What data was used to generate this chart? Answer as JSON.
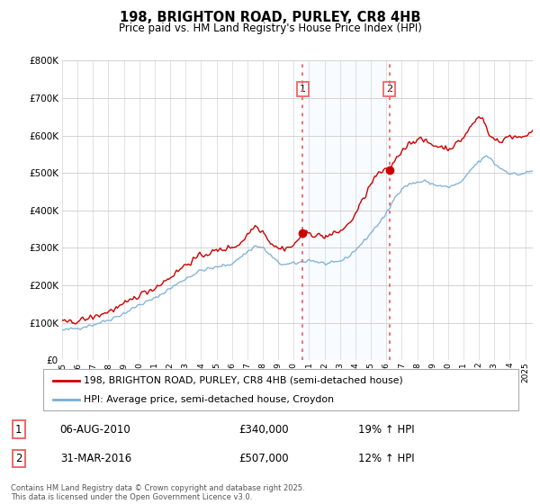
{
  "title": "198, BRIGHTON ROAD, PURLEY, CR8 4HB",
  "subtitle": "Price paid vs. HM Land Registry's House Price Index (HPI)",
  "background_color": "#ffffff",
  "grid_color": "#cccccc",
  "red_line_color": "#cc0000",
  "blue_line_color": "#7aadd4",
  "blue_fill_color": "#ddeeff",
  "vline_color": "#ee6666",
  "sale1_x_year": 2010.58,
  "sale1_y": 340000,
  "sale2_x_year": 2016.21,
  "sale2_y": 507000,
  "sale1_date": "06-AUG-2010",
  "sale1_price": "£340,000",
  "sale1_hpi": "19% ↑ HPI",
  "sale2_date": "31-MAR-2016",
  "sale2_price": "£507,000",
  "sale2_hpi": "12% ↑ HPI",
  "legend_label_red": "198, BRIGHTON ROAD, PURLEY, CR8 4HB (semi-detached house)",
  "legend_label_blue": "HPI: Average price, semi-detached house, Croydon",
  "footer": "Contains HM Land Registry data © Crown copyright and database right 2025.\nThis data is licensed under the Open Government Licence v3.0.",
  "ylim": [
    0,
    800000
  ],
  "yticks": [
    0,
    100000,
    200000,
    300000,
    400000,
    500000,
    600000,
    700000,
    800000
  ],
  "xmin": 1995.0,
  "xmax": 2025.5,
  "xticks": [
    1995,
    1996,
    1997,
    1998,
    1999,
    2000,
    2001,
    2002,
    2003,
    2004,
    2005,
    2006,
    2007,
    2008,
    2009,
    2010,
    2011,
    2012,
    2013,
    2014,
    2015,
    2016,
    2017,
    2018,
    2019,
    2020,
    2021,
    2022,
    2023,
    2024,
    2025
  ]
}
